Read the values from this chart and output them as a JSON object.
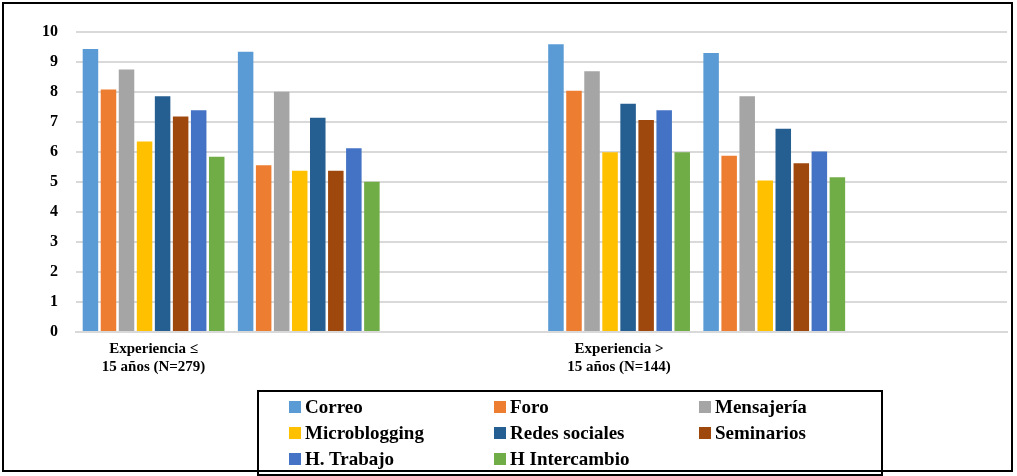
{
  "chart_data": {
    "type": "bar",
    "categories": [
      "Experiencia ≤ 15 años (N=279)",
      null,
      null,
      "Experiencia > 15 años (N=144)",
      null,
      null
    ],
    "series": [
      {
        "name": "Correo",
        "color": "#5b9bd5",
        "values": [
          9.42,
          9.33,
          null,
          9.58,
          9.29,
          null
        ]
      },
      {
        "name": "Foro",
        "color": "#ed7d31",
        "values": [
          8.07,
          5.55,
          null,
          8.03,
          5.87,
          null
        ]
      },
      {
        "name": "Mensajería",
        "color": "#a5a5a5",
        "values": [
          8.74,
          8.0,
          null,
          8.68,
          7.85,
          null
        ]
      },
      {
        "name": "Microblogging",
        "color": "#ffc000",
        "values": [
          6.34,
          5.37,
          null,
          5.98,
          5.04,
          null
        ]
      },
      {
        "name": "Redes sociales",
        "color": "#255e91",
        "values": [
          7.85,
          7.13,
          null,
          7.6,
          6.77,
          null
        ]
      },
      {
        "name": "Seminarios",
        "color": "#9e480e",
        "values": [
          7.17,
          5.37,
          null,
          7.06,
          5.62,
          null
        ]
      },
      {
        "name": "H. Trabajo",
        "color": "#4472c4",
        "values": [
          7.38,
          6.12,
          null,
          7.38,
          6.01,
          null
        ]
      },
      {
        "name": "H Intercambio",
        "color": "#70ad47",
        "values": [
          5.83,
          5.0,
          null,
          5.98,
          5.15,
          null
        ]
      }
    ],
    "ylim": [
      0,
      10
    ],
    "yticks": [
      0,
      1,
      2,
      3,
      4,
      5,
      6,
      7,
      8,
      9,
      10
    ],
    "grid": "y",
    "legend": "bottom"
  }
}
